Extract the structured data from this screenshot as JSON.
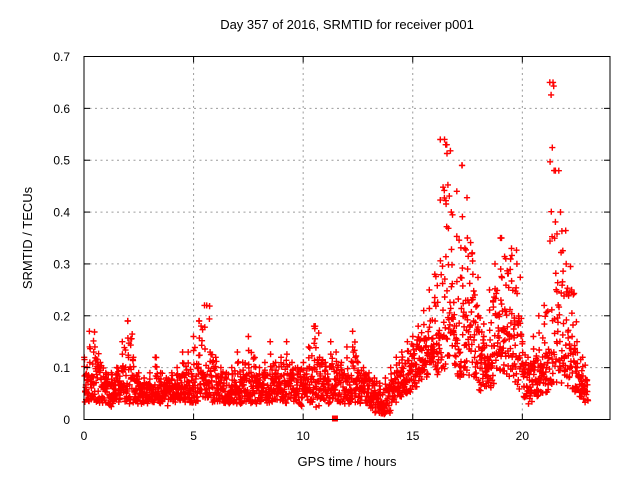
{
  "window_title": "Day 357 of 2016, SRMTID for receiver p001",
  "chart_data": {
    "type": "scatter",
    "title": "Day 357 of 2016, SRMTID for receiver p001",
    "xlabel": "GPS time / hours",
    "ylabel": "SRMTID / TECUs",
    "xlim": [
      0,
      24
    ],
    "ylim": [
      0,
      0.7
    ],
    "xticks": [
      [
        0,
        "0"
      ],
      [
        5,
        "5"
      ],
      [
        10,
        "10"
      ],
      [
        15,
        "15"
      ],
      [
        20,
        "20"
      ]
    ],
    "yticks": [
      [
        0,
        "0"
      ],
      [
        0.1,
        "0.1"
      ],
      [
        0.2,
        "0.2"
      ],
      [
        0.3,
        "0.3"
      ],
      [
        0.4,
        "0.4"
      ],
      [
        0.5,
        "0.5"
      ],
      [
        0.6,
        "0.6"
      ],
      [
        0.7,
        "0.7"
      ]
    ],
    "grid": true,
    "grid_color": "#9c9c9c",
    "legend": "none",
    "series": [
      {
        "name": "SRMTID",
        "marker": "plus",
        "color": "#ff0000",
        "points_per_bin": 26,
        "seed": 3572016,
        "bin_width_hours": 0.25,
        "bins_format": [
          "t_start",
          "y_min",
          "y_typical",
          "y_max"
        ],
        "bins": [
          [
            0.0,
            0.03,
            0.06,
            0.12
          ],
          [
            0.25,
            0.03,
            0.07,
            0.17
          ],
          [
            0.5,
            0.03,
            0.07,
            0.14
          ],
          [
            0.75,
            0.03,
            0.06,
            0.11
          ],
          [
            1.0,
            0.02,
            0.05,
            0.09
          ],
          [
            1.25,
            0.03,
            0.05,
            0.09
          ],
          [
            1.5,
            0.03,
            0.06,
            0.1
          ],
          [
            1.75,
            0.03,
            0.07,
            0.15
          ],
          [
            2.0,
            0.03,
            0.08,
            0.19
          ],
          [
            2.25,
            0.03,
            0.06,
            0.12
          ],
          [
            2.5,
            0.03,
            0.05,
            0.09
          ],
          [
            2.75,
            0.03,
            0.05,
            0.08
          ],
          [
            3.0,
            0.03,
            0.05,
            0.09
          ],
          [
            3.25,
            0.03,
            0.06,
            0.12
          ],
          [
            3.5,
            0.03,
            0.05,
            0.09
          ],
          [
            3.75,
            0.02,
            0.05,
            0.08
          ],
          [
            4.0,
            0.03,
            0.05,
            0.09
          ],
          [
            4.25,
            0.03,
            0.06,
            0.1
          ],
          [
            4.5,
            0.03,
            0.06,
            0.13
          ],
          [
            4.75,
            0.03,
            0.06,
            0.13
          ],
          [
            5.0,
            0.03,
            0.07,
            0.16
          ],
          [
            5.25,
            0.04,
            0.08,
            0.19
          ],
          [
            5.5,
            0.04,
            0.08,
            0.22
          ],
          [
            5.75,
            0.03,
            0.07,
            0.13
          ],
          [
            6.0,
            0.03,
            0.06,
            0.12
          ],
          [
            6.25,
            0.03,
            0.06,
            0.1
          ],
          [
            6.5,
            0.03,
            0.05,
            0.09
          ],
          [
            6.75,
            0.03,
            0.06,
            0.1
          ],
          [
            7.0,
            0.03,
            0.06,
            0.13
          ],
          [
            7.25,
            0.03,
            0.06,
            0.11
          ],
          [
            7.5,
            0.03,
            0.07,
            0.16
          ],
          [
            7.75,
            0.03,
            0.06,
            0.12
          ],
          [
            8.0,
            0.03,
            0.06,
            0.1
          ],
          [
            8.25,
            0.03,
            0.06,
            0.11
          ],
          [
            8.5,
            0.03,
            0.07,
            0.15
          ],
          [
            8.75,
            0.03,
            0.06,
            0.11
          ],
          [
            9.0,
            0.03,
            0.06,
            0.12
          ],
          [
            9.25,
            0.03,
            0.07,
            0.15
          ],
          [
            9.5,
            0.03,
            0.06,
            0.11
          ],
          [
            9.75,
            0.02,
            0.06,
            0.1
          ],
          [
            10.0,
            0.03,
            0.06,
            0.11
          ],
          [
            10.25,
            0.03,
            0.07,
            0.14
          ],
          [
            10.5,
            0.02,
            0.07,
            0.18
          ],
          [
            10.75,
            0.03,
            0.06,
            0.12
          ],
          [
            11.0,
            0.03,
            0.06,
            0.11
          ],
          [
            11.25,
            0.03,
            0.07,
            0.15
          ],
          [
            11.5,
            0.03,
            0.07,
            0.13
          ],
          [
            11.75,
            0.03,
            0.06,
            0.11
          ],
          [
            12.0,
            0.03,
            0.07,
            0.14
          ],
          [
            12.25,
            0.03,
            0.07,
            0.17
          ],
          [
            12.5,
            0.03,
            0.06,
            0.11
          ],
          [
            12.75,
            0.03,
            0.06,
            0.1
          ],
          [
            13.0,
            0.02,
            0.05,
            0.09
          ],
          [
            13.25,
            0.01,
            0.04,
            0.08
          ],
          [
            13.5,
            0.01,
            0.03,
            0.07
          ],
          [
            13.75,
            0.01,
            0.04,
            0.08
          ],
          [
            14.0,
            0.03,
            0.06,
            0.1
          ],
          [
            14.25,
            0.04,
            0.07,
            0.12
          ],
          [
            14.5,
            0.05,
            0.08,
            0.13
          ],
          [
            14.75,
            0.05,
            0.09,
            0.15
          ],
          [
            15.0,
            0.06,
            0.1,
            0.16
          ],
          [
            15.25,
            0.07,
            0.11,
            0.18
          ],
          [
            15.5,
            0.08,
            0.12,
            0.21
          ],
          [
            15.75,
            0.09,
            0.13,
            0.25
          ],
          [
            16.0,
            0.08,
            0.13,
            0.28
          ],
          [
            16.25,
            0.09,
            0.15,
            0.54
          ],
          [
            16.5,
            0.1,
            0.17,
            0.53
          ],
          [
            16.75,
            0.1,
            0.16,
            0.4
          ],
          [
            17.0,
            0.08,
            0.15,
            0.44
          ],
          [
            17.25,
            0.08,
            0.16,
            0.49
          ],
          [
            17.5,
            0.08,
            0.15,
            0.35
          ],
          [
            17.75,
            0.07,
            0.13,
            0.28
          ],
          [
            18.0,
            0.05,
            0.1,
            0.2
          ],
          [
            18.25,
            0.05,
            0.09,
            0.16
          ],
          [
            18.5,
            0.06,
            0.12,
            0.25
          ],
          [
            18.75,
            0.07,
            0.14,
            0.3
          ],
          [
            19.0,
            0.08,
            0.15,
            0.35
          ],
          [
            19.25,
            0.08,
            0.14,
            0.31
          ],
          [
            19.5,
            0.06,
            0.12,
            0.33
          ],
          [
            19.75,
            0.05,
            0.11,
            0.3
          ],
          [
            20.0,
            0.04,
            0.08,
            0.15
          ],
          [
            20.25,
            0.03,
            0.07,
            0.12
          ],
          [
            20.5,
            0.04,
            0.08,
            0.16
          ],
          [
            20.75,
            0.05,
            0.09,
            0.2
          ],
          [
            21.0,
            0.05,
            0.1,
            0.22
          ],
          [
            21.25,
            0.06,
            0.14,
            0.65
          ],
          [
            21.5,
            0.07,
            0.15,
            0.48
          ],
          [
            21.75,
            0.07,
            0.14,
            0.4
          ],
          [
            22.0,
            0.06,
            0.12,
            0.3
          ],
          [
            22.25,
            0.05,
            0.1,
            0.25
          ],
          [
            22.5,
            0.04,
            0.08,
            0.15
          ],
          [
            22.75,
            0.03,
            0.06,
            0.12
          ]
        ],
        "notable_peaks": [
          [
            21.4,
            0.65
          ],
          [
            16.45,
            0.54
          ],
          [
            16.55,
            0.53
          ],
          [
            17.25,
            0.49
          ],
          [
            21.45,
            0.48
          ],
          [
            19.05,
            0.35
          ],
          [
            5.6,
            0.22
          ],
          [
            2.0,
            0.19
          ],
          [
            5.25,
            0.19
          ],
          [
            10.55,
            0.18
          ]
        ]
      }
    ],
    "outliers": [
      {
        "x": 11.45,
        "y": 0.0,
        "marker": "filled-square",
        "color": "#ff0000"
      }
    ]
  }
}
